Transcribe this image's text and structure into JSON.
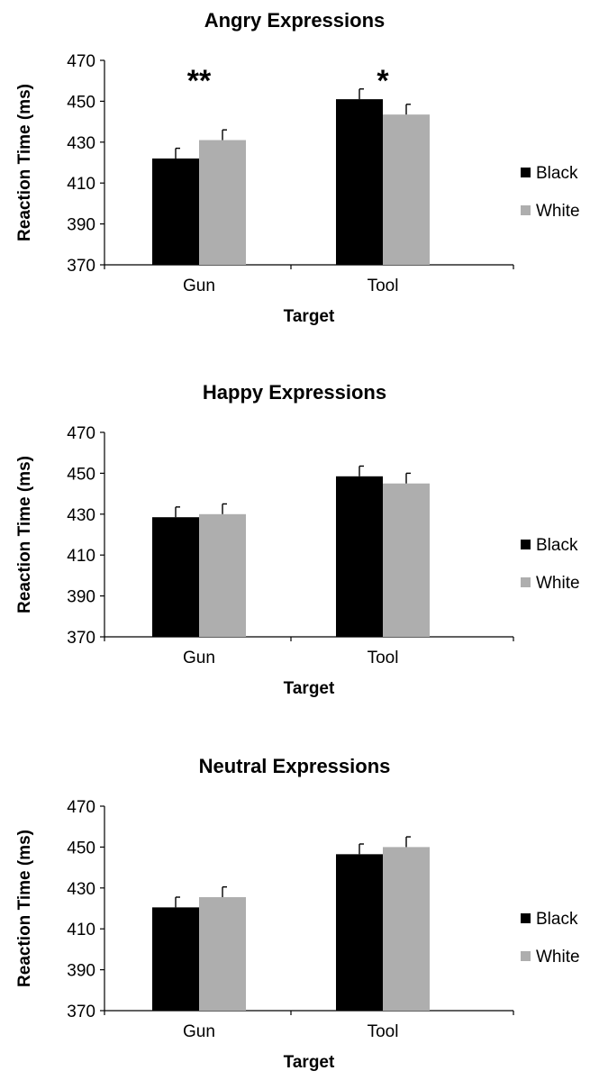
{
  "colors": {
    "Black": "#000000",
    "White": "#aeaeae"
  },
  "chart_data": [
    {
      "type": "bar",
      "title": "Angry Expressions",
      "xlabel": "Target",
      "ylabel": "Reaction Time (ms)",
      "categories": [
        "Gun",
        "Tool"
      ],
      "ylim": [
        370,
        470
      ],
      "yticks": [
        370,
        390,
        410,
        430,
        450,
        470
      ],
      "legend": "right",
      "series": [
        {
          "name": "Black",
          "values": [
            422,
            451
          ],
          "errors": [
            5,
            5
          ]
        },
        {
          "name": "White",
          "values": [
            431,
            443.5
          ],
          "errors": [
            5,
            5
          ]
        }
      ],
      "annotations": [
        "**",
        "*"
      ]
    },
    {
      "type": "bar",
      "title": "Happy Expressions",
      "xlabel": "Target",
      "ylabel": "Reaction Time (ms)",
      "categories": [
        "Gun",
        "Tool"
      ],
      "ylim": [
        370,
        470
      ],
      "yticks": [
        370,
        390,
        410,
        430,
        450,
        470
      ],
      "legend": "right",
      "series": [
        {
          "name": "Black",
          "values": [
            428.5,
            448.5
          ],
          "errors": [
            5,
            5
          ]
        },
        {
          "name": "White",
          "values": [
            430,
            445
          ],
          "errors": [
            5,
            5
          ]
        }
      ],
      "annotations": [
        "",
        ""
      ]
    },
    {
      "type": "bar",
      "title": "Neutral Expressions",
      "xlabel": "Target",
      "ylabel": "Reaction Time (ms)",
      "categories": [
        "Gun",
        "Tool"
      ],
      "ylim": [
        370,
        470
      ],
      "yticks": [
        370,
        390,
        410,
        430,
        450,
        470
      ],
      "legend": "right",
      "series": [
        {
          "name": "Black",
          "values": [
            420.5,
            446.5
          ],
          "errors": [
            5,
            5
          ]
        },
        {
          "name": "White",
          "values": [
            425.5,
            450
          ],
          "errors": [
            5,
            5
          ]
        }
      ],
      "annotations": [
        "",
        ""
      ]
    }
  ]
}
